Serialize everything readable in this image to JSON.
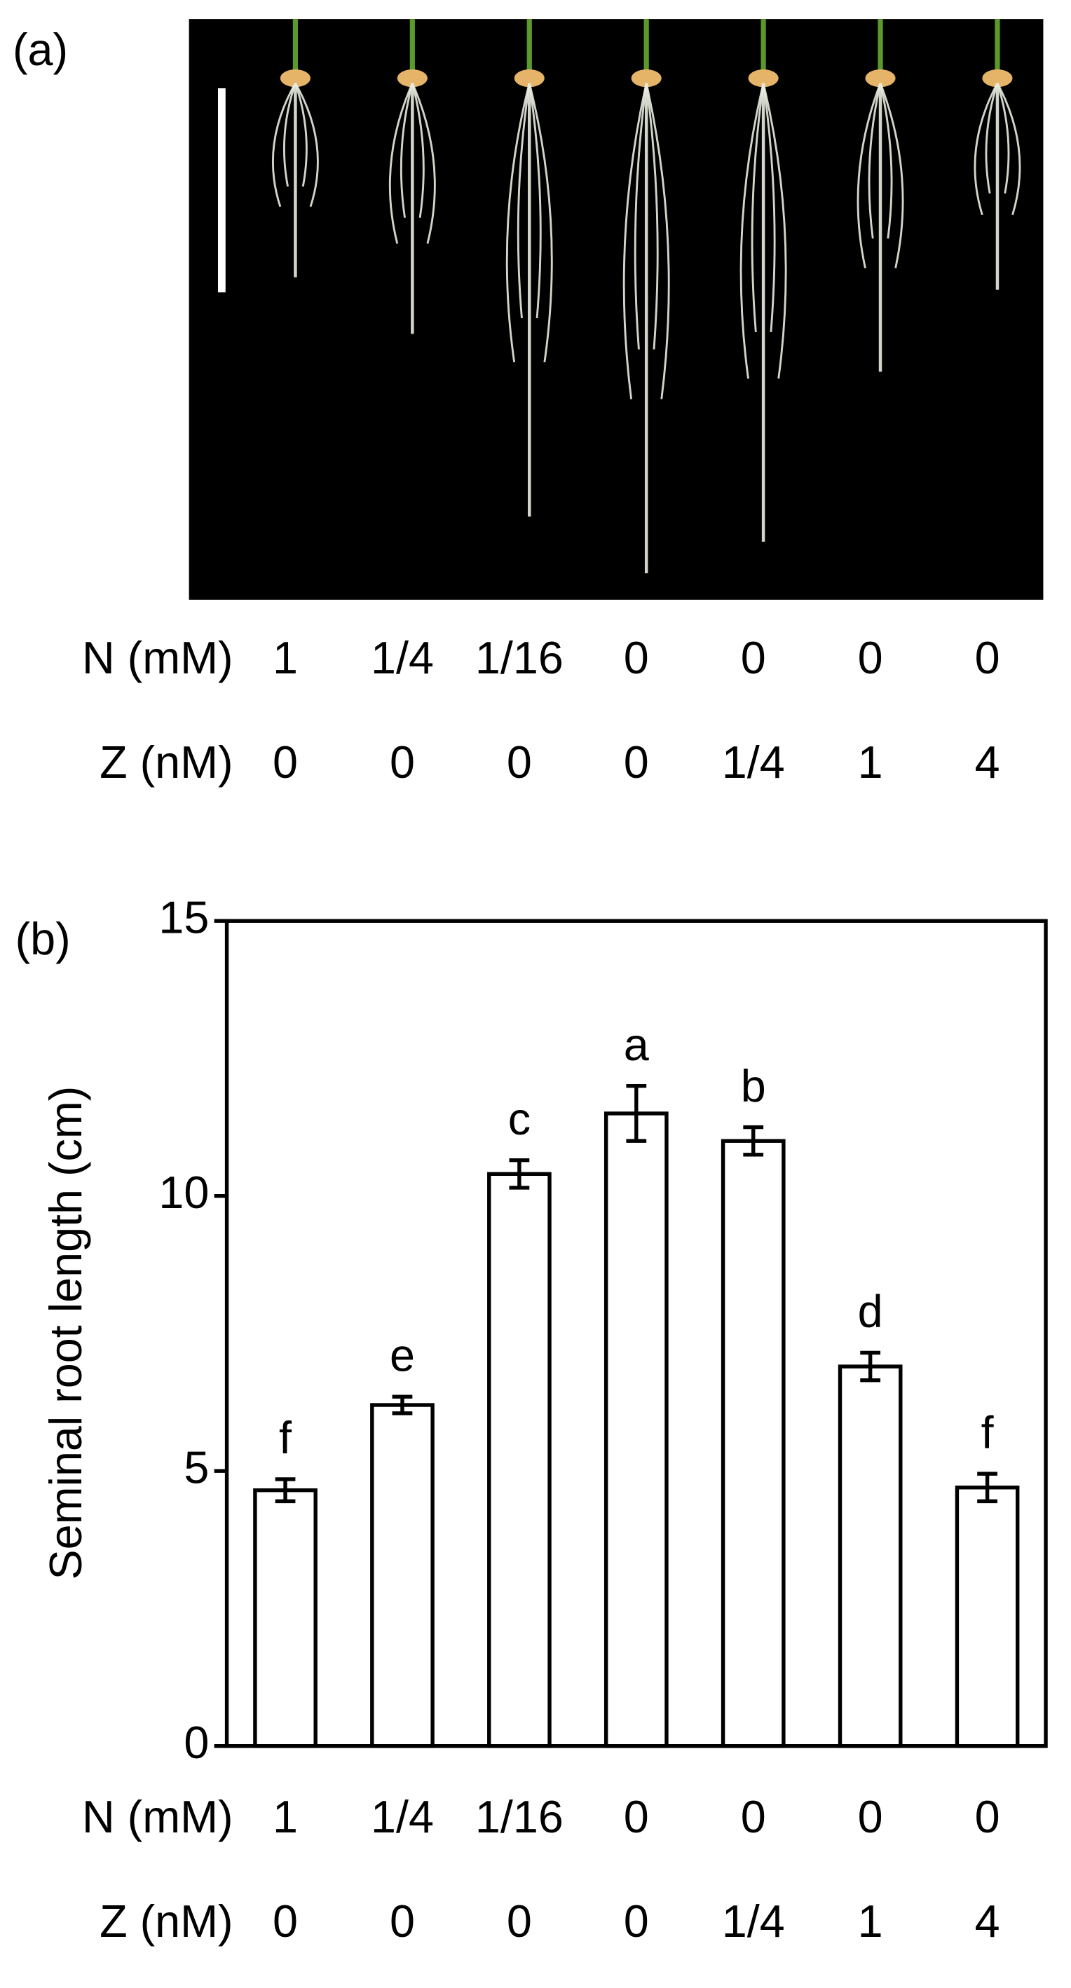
{
  "photo_panel": {
    "label": "(a)",
    "categories_title": "N (mM)",
    "categories": [
      "1",
      "1/4",
      "1/16",
      "0",
      "0",
      "0",
      "0"
    ],
    "categories_z_title": "Z (nM)",
    "categories_z": [
      "0",
      "0",
      "0",
      "0",
      "1/4",
      "1",
      "4"
    ]
  },
  "chart_data": {
    "type": "bar",
    "panel_label": "(b)",
    "y_label": "Seminal root length (cm)",
    "categories_title": "N (mM)",
    "categories": [
      "1",
      "1/4",
      "1/16",
      "0",
      "0",
      "0",
      "0"
    ],
    "categories_z_title": "Z (nM)",
    "categories_z": [
      "0",
      "0",
      "0",
      "0",
      "1/4",
      "1",
      "4"
    ],
    "values": [
      4.65,
      6.2,
      10.4,
      11.5,
      11.0,
      6.9,
      4.7
    ],
    "errors": [
      0.2,
      0.15,
      0.25,
      0.5,
      0.25,
      0.25,
      0.25
    ],
    "annotations": [
      "f",
      "e",
      "c",
      "a",
      "b",
      "d",
      "f"
    ],
    "color": "#ffffff",
    "edge_color": "#000000",
    "ylim": [
      0,
      15
    ],
    "yticks": [
      0,
      5,
      10,
      15
    ]
  }
}
